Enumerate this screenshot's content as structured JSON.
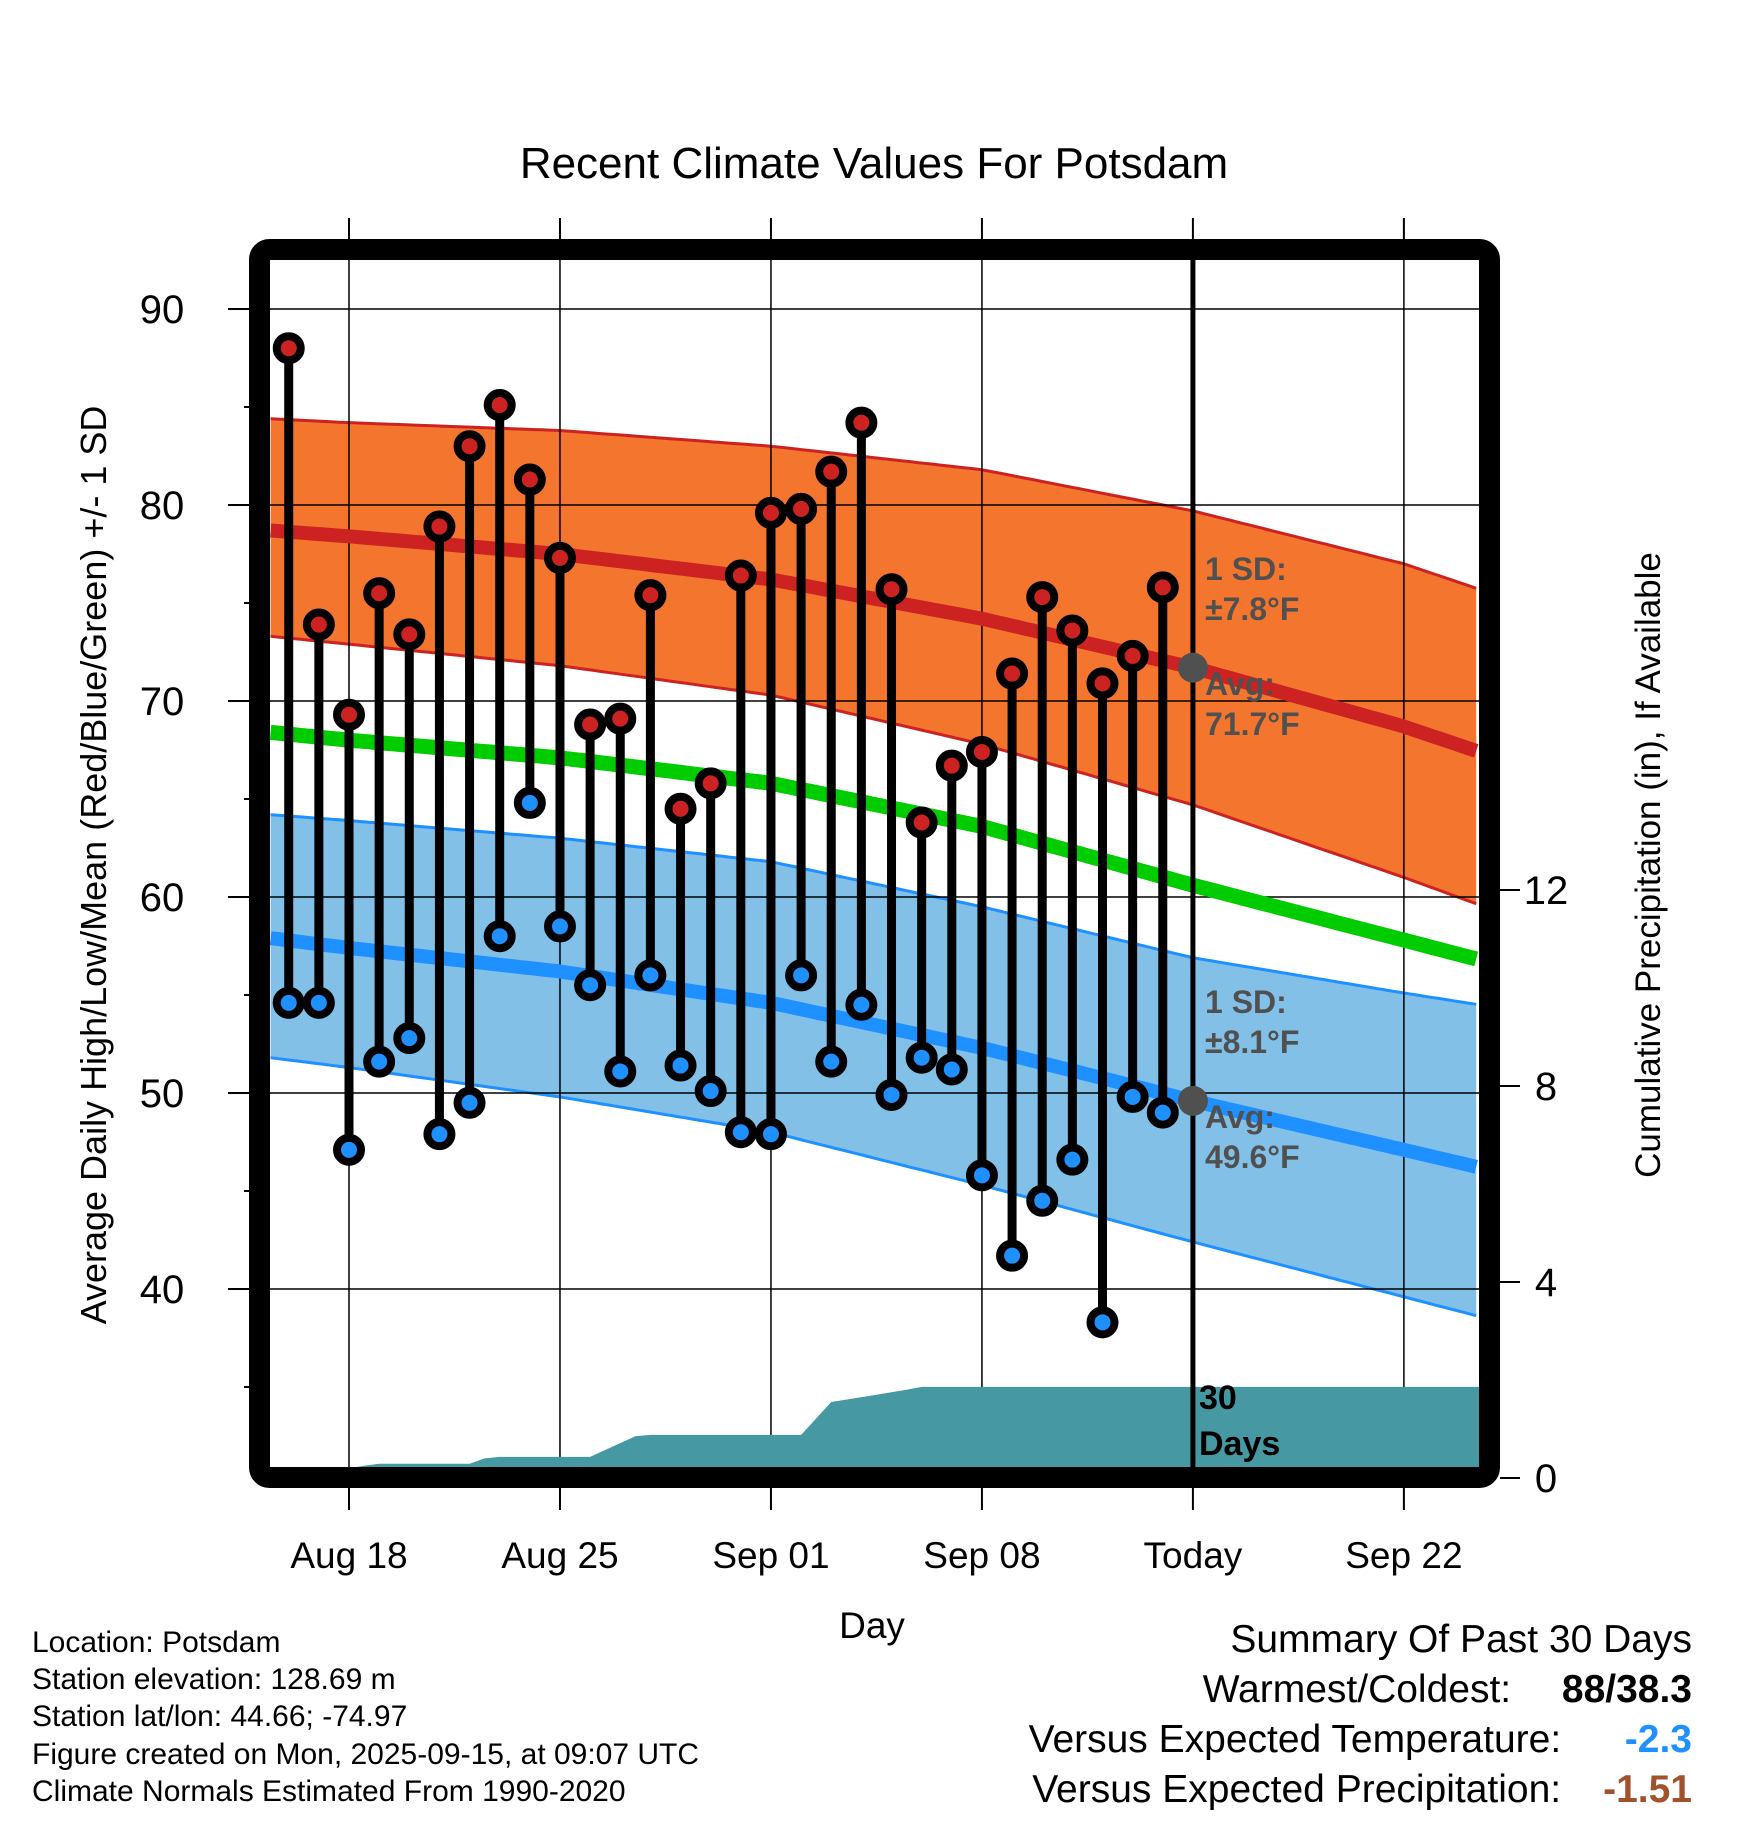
{
  "footer": {
    "location": "Location: Potsdam",
    "elevation": "Station elevation: 128.69 m",
    "latlon": "Station lat/lon: 44.66; -74.97",
    "created": "Figure created on Mon, 2025-09-15, at 09:07 UTC",
    "normals": "Climate Normals Estimated From 1990-2020"
  },
  "summary": {
    "title": "Summary Of Past 30 Days",
    "warmest_coldest_label": "Warmest/Coldest:",
    "warmest_coldest_value": "88/38.3",
    "vs_temp_label": "Versus Expected Temperature:",
    "vs_temp_value": "-2.3",
    "vs_temp_color": "#1e90ff",
    "vs_precip_label": "Versus Expected Precipitation:",
    "vs_precip_value": "-1.51",
    "vs_precip_color": "#a0522d"
  },
  "colors": {
    "high_fill": "#cc2222",
    "low_fill": "#1e90ff",
    "high_band": "#f4762e",
    "high_band_edge": "#cc2222",
    "low_band": "#82c0e8",
    "low_band_edge": "#1e90ff",
    "mean_line": "#00cc00",
    "precip": "#4699a2",
    "annotation": "#505050"
  },
  "chart_data": {
    "type": "line",
    "title": "Recent Climate Values For Potsdam",
    "xlabel": "Day",
    "ylabel": "Average Daily High/Low/Mean (Red/Blue/Green) +/- 1 SD",
    "y2label": "Cumulative Precipitation (in), If Available",
    "ylim": [
      30.9,
      92.5
    ],
    "y2lim": [
      0,
      12.8
    ],
    "yticks": [
      40,
      50,
      60,
      70,
      80,
      90
    ],
    "y2ticks": [
      0,
      4,
      8,
      12
    ],
    "xlim_days_from_aug18": [
      -2.6,
      37.5
    ],
    "xticks": [
      {
        "label": "Aug 18",
        "day": 0
      },
      {
        "label": "Aug 25",
        "day": 7
      },
      {
        "label": "Sep 01",
        "day": 14
      },
      {
        "label": "Sep 08",
        "day": 21
      },
      {
        "label": "Today",
        "day": 28
      },
      {
        "label": "Sep 22",
        "day": 35
      }
    ],
    "grid": true,
    "today_day": 28,
    "observations": {
      "dates": [
        "Aug 16",
        "Aug 17",
        "Aug 18",
        "Aug 19",
        "Aug 20",
        "Aug 21",
        "Aug 22",
        "Aug 23",
        "Aug 24",
        "Aug 25",
        "Aug 26",
        "Aug 27",
        "Aug 28",
        "Aug 29",
        "Aug 30",
        "Aug 31",
        "Sep 01",
        "Sep 02",
        "Sep 03",
        "Sep 04",
        "Sep 05",
        "Sep 06",
        "Sep 07",
        "Sep 08",
        "Sep 09",
        "Sep 10",
        "Sep 11",
        "Sep 12",
        "Sep 13",
        "Sep 14"
      ],
      "days": [
        -2,
        -1,
        0,
        1,
        2,
        3,
        4,
        5,
        6,
        7,
        8,
        9,
        10,
        11,
        12,
        13,
        14,
        15,
        16,
        17,
        18,
        19,
        20,
        21,
        22,
        23,
        24,
        25,
        26,
        27
      ],
      "high": [
        88.0,
        73.9,
        69.3,
        75.5,
        73.4,
        78.9,
        83.0,
        85.1,
        81.3,
        77.3,
        68.8,
        69.1,
        75.4,
        64.5,
        65.8,
        76.4,
        79.6,
        79.8,
        81.7,
        84.2,
        75.7,
        63.8,
        66.7,
        67.4,
        71.4,
        75.3,
        73.6,
        70.9,
        72.3,
        75.8
      ],
      "low": [
        54.6,
        54.6,
        47.1,
        51.6,
        52.8,
        47.9,
        49.5,
        58.0,
        64.8,
        58.5,
        55.5,
        51.1,
        56.0,
        51.4,
        50.1,
        48.0,
        47.9,
        56.0,
        51.6,
        54.5,
        49.9,
        51.8,
        51.2,
        45.8,
        41.7,
        44.5,
        46.6,
        38.3,
        49.8,
        49.0
      ]
    },
    "normals": {
      "days": [
        -2.6,
        0,
        7,
        14,
        21,
        28,
        35,
        37.5
      ],
      "high_mean": [
        78.7,
        78.4,
        77.5,
        76.2,
        74.2,
        71.7,
        68.7,
        67.4
      ],
      "high_upper": [
        84.4,
        84.2,
        83.8,
        83.0,
        81.8,
        79.7,
        77.0,
        75.7
      ],
      "high_lower": [
        73.3,
        72.9,
        71.8,
        70.3,
        67.8,
        64.7,
        61.0,
        59.6
      ],
      "mean": [
        68.4,
        68.0,
        67.1,
        65.8,
        63.6,
        60.6,
        57.8,
        56.8
      ],
      "low_mean": [
        57.9,
        57.4,
        56.2,
        54.6,
        52.3,
        49.6,
        47.1,
        46.2
      ],
      "low_upper": [
        64.2,
        63.9,
        63.0,
        61.8,
        59.5,
        56.9,
        55.1,
        54.5
      ],
      "low_lower": [
        51.8,
        51.3,
        49.8,
        48.0,
        45.3,
        42.4,
        39.6,
        38.6
      ]
    },
    "precip_cumulative": {
      "days": [
        0,
        0.5,
        1,
        4,
        4.5,
        5,
        8,
        9.5,
        10,
        15,
        16,
        16.5,
        17.5,
        18.5,
        19,
        37.5
      ],
      "values": [
        0.2,
        0.25,
        0.29,
        0.29,
        0.4,
        0.43,
        0.43,
        0.85,
        0.88,
        0.88,
        1.55,
        1.6,
        1.7,
        1.8,
        1.86,
        1.86
      ]
    },
    "annotations": {
      "high_sd": [
        "1 SD:",
        "±7.8°F"
      ],
      "high_avg": [
        "Avg:",
        "71.7°F"
      ],
      "low_sd": [
        "1 SD:",
        "±8.1°F"
      ],
      "low_avg": [
        "Avg:",
        "49.6°F"
      ],
      "period": [
        "30",
        "Days"
      ]
    }
  }
}
